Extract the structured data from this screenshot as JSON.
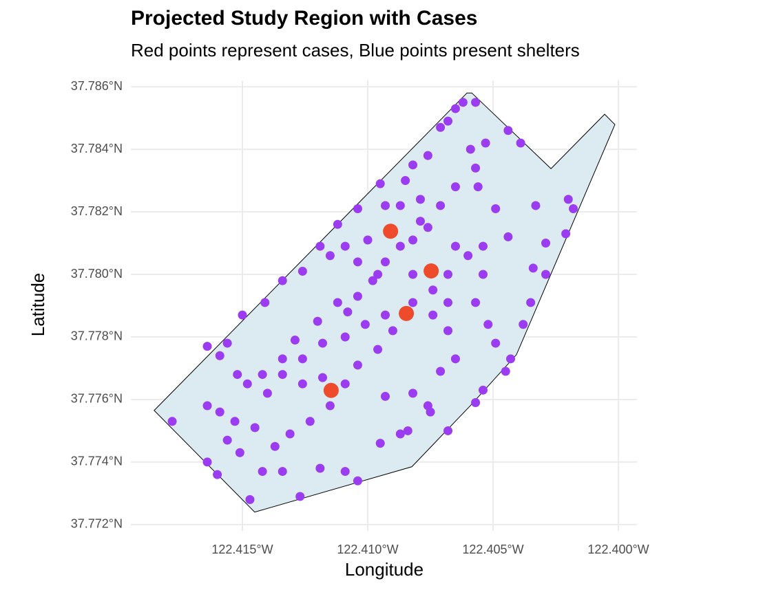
{
  "chart_data": {
    "type": "scatter",
    "title": "Projected Study Region with Cases",
    "subtitle": "Red points represent cases, Blue points present shelters",
    "xlabel": "Longitude",
    "ylabel": "Latitude",
    "xlim": [
      -122.41945,
      -122.39926
    ],
    "ylim": [
      37.7718,
      37.7862
    ],
    "xticks": [
      {
        "value": -122.415,
        "label": "122.415°W"
      },
      {
        "value": -122.41,
        "label": "122.410°W"
      },
      {
        "value": -122.405,
        "label": "122.405°W"
      },
      {
        "value": -122.4,
        "label": "122.400°W"
      }
    ],
    "yticks": [
      {
        "value": 37.772,
        "label": "37.772°N"
      },
      {
        "value": 37.774,
        "label": "37.774°N"
      },
      {
        "value": 37.776,
        "label": "37.776°N"
      },
      {
        "value": 37.778,
        "label": "37.778°N"
      },
      {
        "value": 37.78,
        "label": "37.780°N"
      },
      {
        "value": 37.782,
        "label": "37.782°N"
      },
      {
        "value": 37.784,
        "label": "37.784°N"
      },
      {
        "value": 37.786,
        "label": "37.786°N"
      }
    ],
    "grid": true,
    "region": {
      "fill": "#dceaf2",
      "stroke": "#000000",
      "x": [
        -122.41852,
        -122.41451,
        -122.40824,
        -122.40591,
        -122.40407,
        -122.40014,
        -122.40055,
        -122.40269,
        -122.40585,
        -122.40604
      ],
      "y": [
        37.77565,
        37.7724,
        37.77385,
        37.7758,
        37.77743,
        37.78479,
        37.78512,
        37.78338,
        37.7858,
        37.7858
      ]
    },
    "series": [
      {
        "color": "#9b3cf0",
        "x": [
          -122.4178,
          -122.4164,
          -122.4159,
          -122.4156,
          -122.4164,
          -122.416,
          -122.4147,
          -122.4127,
          -122.4142,
          -122.4134,
          -122.4119,
          -122.4109,
          -122.4104,
          -122.4095,
          -122.4087,
          -122.4084,
          -122.4075,
          -122.4068,
          -122.4057,
          -122.4054,
          -122.4045,
          -122.4043,
          -122.4038,
          -122.4035,
          -122.4034,
          -122.4029,
          -122.4021,
          -122.4018,
          -122.402,
          -122.4029,
          -122.4033,
          -122.4049,
          -122.4044,
          -122.4044,
          -122.4039,
          -122.4053,
          -122.4056,
          -122.4057,
          -122.4059,
          -122.4062,
          -122.4057,
          -122.4065,
          -122.4068,
          -122.4071,
          -122.4076,
          -122.4082,
          -122.4085,
          -122.4095,
          -122.4104,
          -122.4112,
          -122.4119,
          -122.4126,
          -122.4134,
          -122.4141,
          -122.415,
          -122.4152,
          -122.4148,
          -122.4142,
          -122.4134,
          -122.4129,
          -122.412,
          -122.4112,
          -122.4104,
          -122.4098,
          -122.4093,
          -122.4087,
          -122.4082,
          -122.4076,
          -122.4071,
          -122.4065,
          -122.406,
          -122.4054,
          -122.4057,
          -122.4052,
          -122.4049,
          -122.4068,
          -122.4074,
          -122.4082,
          -122.409,
          -122.4096,
          -122.4104,
          -122.4109,
          -122.4115,
          -122.4123,
          -122.4131,
          -122.4137,
          -122.4145,
          -122.4153,
          -122.4159,
          -122.4164,
          -122.4156,
          -122.4151,
          -122.4126,
          -122.4118,
          -122.4093,
          -122.4082,
          -122.4076,
          -122.4071,
          -122.4065,
          -122.4093,
          -122.4101,
          -122.4109,
          -122.4118,
          -122.4126,
          -122.4134,
          -122.414,
          -122.4096,
          -122.4104,
          -122.4109,
          -122.4115,
          -122.4074,
          -122.4068,
          -122.4065,
          -122.4054,
          -122.4079,
          -122.4087,
          -122.4093,
          -122.4079,
          -122.4108,
          -122.41,
          -122.4082,
          -122.4068
        ],
        "y": [
          37.7753,
          37.7777,
          37.7774,
          37.7778,
          37.774,
          37.7736,
          37.7728,
          37.7729,
          37.7737,
          37.7737,
          37.7738,
          37.7737,
          37.7734,
          37.7746,
          37.7749,
          37.775,
          37.7756,
          37.775,
          37.7759,
          37.7763,
          37.7769,
          37.7773,
          37.7784,
          37.7791,
          37.7802,
          37.781,
          37.7813,
          37.7821,
          37.7824,
          37.78,
          37.7822,
          37.7821,
          37.7812,
          37.7846,
          37.7842,
          37.7842,
          37.7828,
          37.7834,
          37.784,
          37.7855,
          37.7855,
          37.7853,
          37.7849,
          37.7847,
          37.7838,
          37.7835,
          37.783,
          37.7829,
          37.7821,
          37.7816,
          37.7809,
          37.7801,
          37.7798,
          37.7791,
          37.7787,
          37.7768,
          37.7765,
          37.7768,
          37.7773,
          37.7779,
          37.7785,
          37.7791,
          37.7793,
          37.7798,
          37.7804,
          37.7809,
          37.7811,
          37.7815,
          37.7822,
          37.7828,
          37.7806,
          37.78,
          37.7791,
          37.7784,
          37.7778,
          37.7782,
          37.7787,
          37.7791,
          37.7782,
          37.7776,
          37.7771,
          37.7765,
          37.7758,
          37.7753,
          37.7749,
          37.7745,
          37.7751,
          37.7753,
          37.7756,
          37.7758,
          37.7747,
          37.7743,
          37.7765,
          37.7767,
          37.7761,
          37.7762,
          37.7758,
          37.7769,
          37.7773,
          37.7787,
          37.7784,
          37.778,
          37.7778,
          37.7773,
          37.7768,
          37.7762,
          37.78,
          37.7804,
          37.7809,
          37.7806,
          37.7795,
          37.78,
          37.7809,
          37.7809,
          37.7824,
          37.7822,
          37.7822,
          37.7817,
          37.7788,
          37.7811,
          37.78,
          37.7791
        ]
      },
      {
        "color": "#ee4a2c",
        "x": [
          -122.40909,
          -122.40747,
          -122.40846,
          -122.41146
        ],
        "y": [
          37.78138,
          37.78011,
          37.77875,
          37.77629
        ]
      }
    ]
  }
}
